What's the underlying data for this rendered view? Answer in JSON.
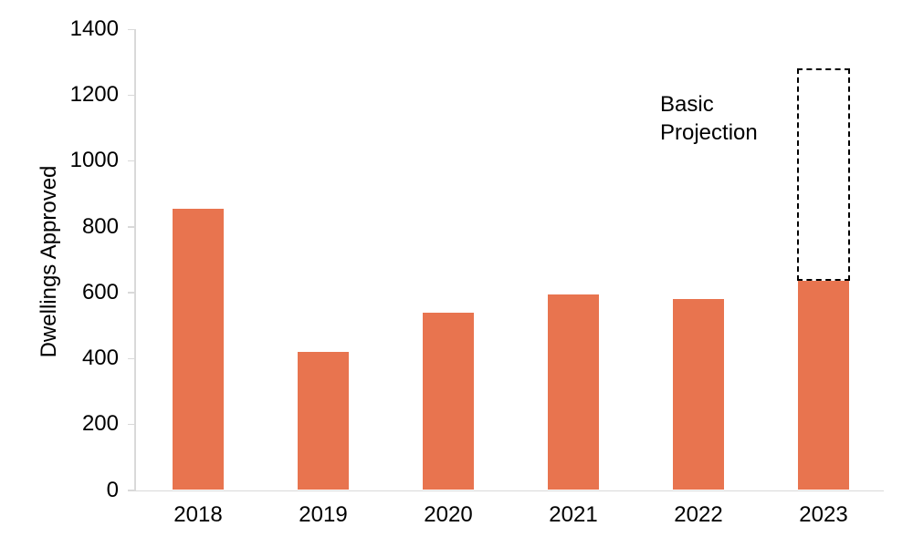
{
  "chart_data": {
    "type": "bar",
    "title": "",
    "ylabel": "Dwellings Approved",
    "xlabel": "",
    "categories": [
      "2018",
      "2019",
      "2020",
      "2021",
      "2022",
      "2023"
    ],
    "values": [
      855,
      420,
      540,
      595,
      580,
      635
    ],
    "yticks": [
      0,
      200,
      400,
      600,
      800,
      1000,
      1200,
      1400
    ],
    "ylim": [
      0,
      1400
    ],
    "grid": false,
    "legend_position": "none",
    "bar_color": "#E8744F",
    "axis_color": "#D9D9D9",
    "text_color": "#000000",
    "projection": {
      "category": "2023",
      "from": 635,
      "to": 1280,
      "style": "dashed-outline",
      "outline_color": "#000000",
      "label_line1": "Basic",
      "label_line2": "Projection"
    }
  }
}
